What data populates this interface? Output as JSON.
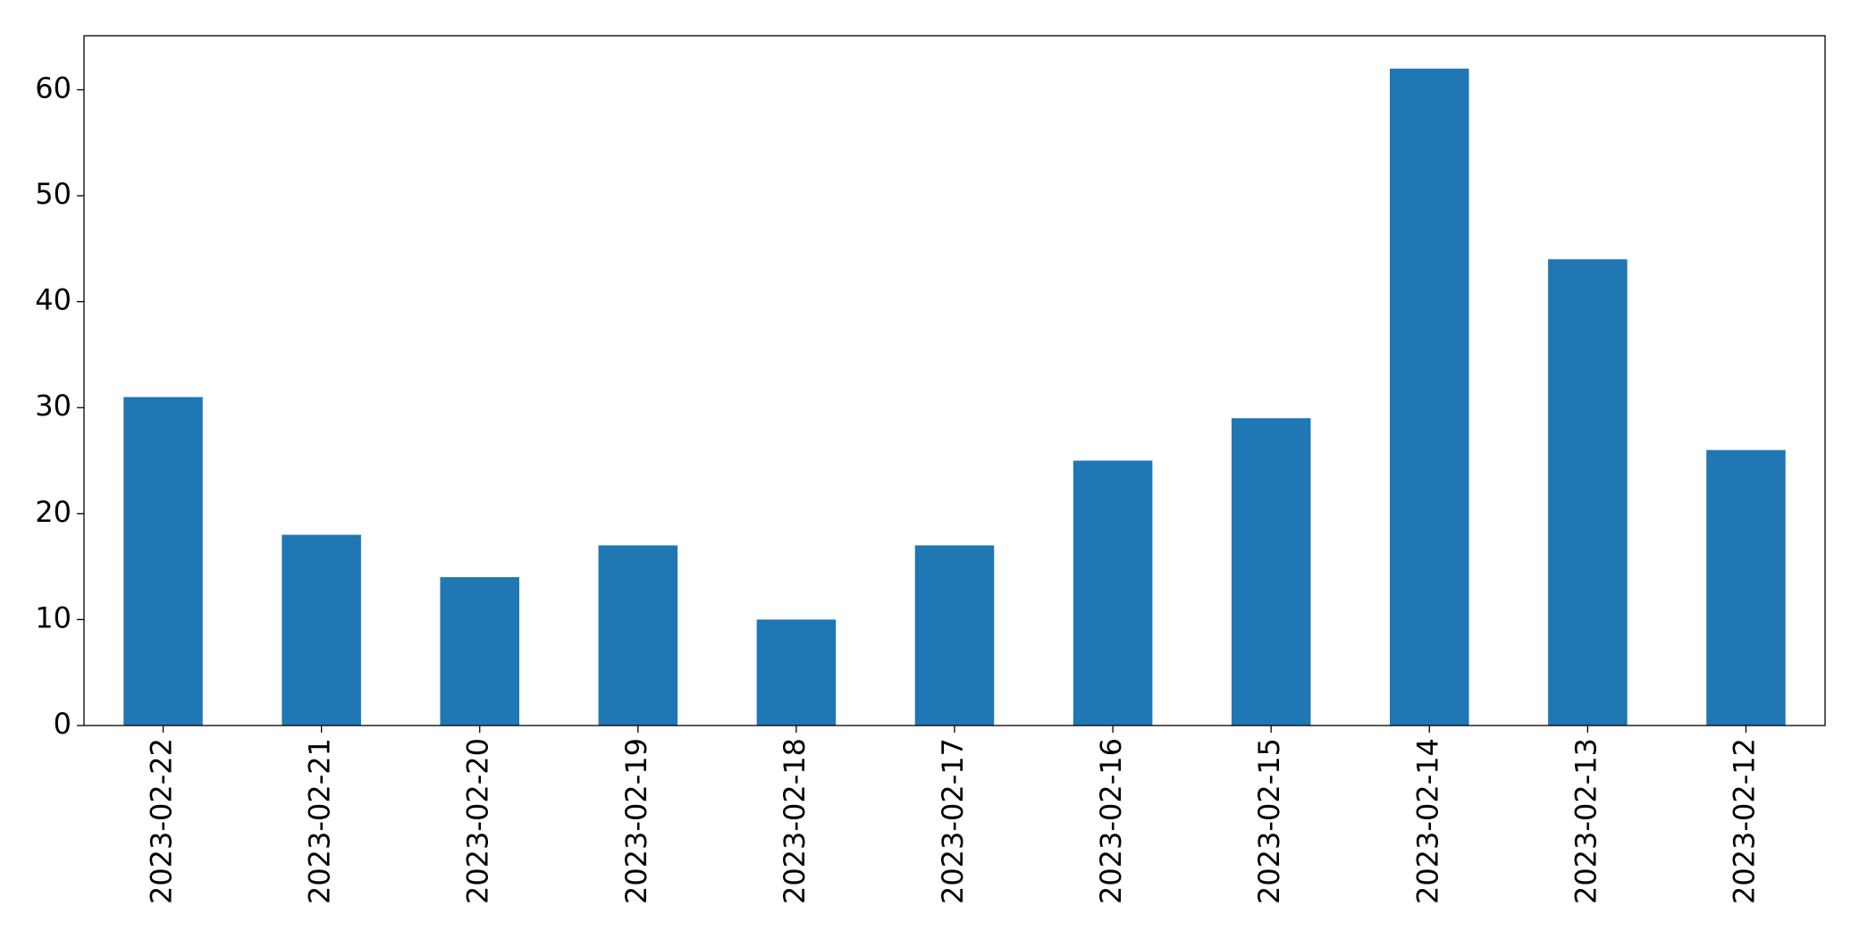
{
  "chart_data": {
    "type": "bar",
    "categories": [
      "2023-02-22",
      "2023-02-21",
      "2023-02-20",
      "2023-02-19",
      "2023-02-18",
      "2023-02-17",
      "2023-02-16",
      "2023-02-15",
      "2023-02-14",
      "2023-02-13",
      "2023-02-12"
    ],
    "values": [
      31,
      18,
      14,
      17,
      10,
      17,
      25,
      29,
      62,
      44,
      26
    ],
    "color": "#1f77b4",
    "ylim": [
      0,
      65.1
    ],
    "yticks": [
      0,
      10,
      20,
      30,
      40,
      50,
      60
    ],
    "grid": false
  }
}
